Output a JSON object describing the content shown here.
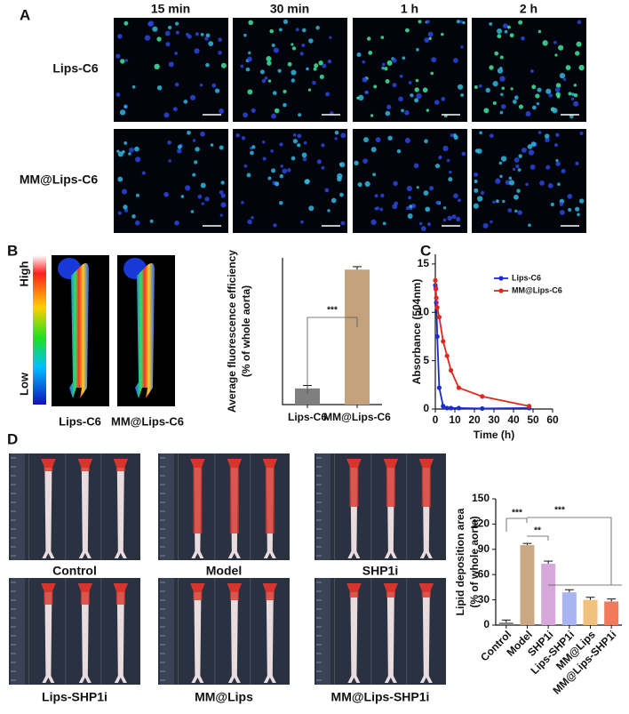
{
  "panel_labels": [
    "A",
    "B",
    "C",
    "D"
  ],
  "panel_a": {
    "columns": [
      "15 min",
      "30 min",
      "1 h",
      "2 h"
    ],
    "rows": [
      "Lips-C6",
      "MM@Lips-C6"
    ]
  },
  "panel_b_images": {
    "scale_high": "High",
    "scale_low": "Low",
    "labels": [
      "Lips-C6",
      "MM@Lips-C6"
    ]
  },
  "panel_d_images": {
    "labels": [
      "Control",
      "Model",
      "SHP1i",
      "Lips-SHP1i",
      "MM@Lips",
      "MM@Lips-SHP1i"
    ]
  },
  "chart_data": [
    {
      "type": "bar",
      "y_label": [
        "Average fluorescence efficiency",
        "(% of whole aorta)"
      ],
      "categories": [
        "Lips-C6",
        "MM@Lips-C6"
      ],
      "values": [
        5.5,
        46
      ],
      "errors": [
        1,
        1
      ],
      "colors": [
        "#7f7f7f",
        "#c4a27c"
      ],
      "ylim": [
        0,
        50
      ],
      "annotations": [
        "***"
      ]
    },
    {
      "type": "line",
      "x_label": "Time (h)",
      "y_label": "Absorbance (504nm)",
      "xlim": [
        0,
        60
      ],
      "xticks": [
        0,
        10,
        20,
        30,
        40,
        50,
        60
      ],
      "ylim": [
        0,
        16
      ],
      "yticks": [
        0,
        5,
        10,
        15
      ],
      "legend": "upper right",
      "series": [
        {
          "name": "Lips-C6",
          "color": "#1a2bd6",
          "x": [
            0,
            0.25,
            0.5,
            1,
            2,
            4,
            6,
            8,
            12,
            24,
            48
          ],
          "values": [
            12.8,
            12.5,
            11,
            7.5,
            2.2,
            0.3,
            0.1,
            0.1,
            0.1,
            0.05,
            0.1
          ]
        },
        {
          "name": "MM@Lips-C6",
          "color": "#e0281e",
          "x": [
            0,
            0.25,
            0.5,
            1,
            2,
            4,
            6,
            8,
            12,
            24,
            48
          ],
          "values": [
            13.3,
            12.4,
            11.5,
            10.5,
            9.5,
            7,
            5.5,
            4,
            2.2,
            1.3,
            0.3
          ]
        }
      ]
    },
    {
      "type": "bar",
      "y_label": [
        "Lipid deposition area",
        "(% of whole aorta)"
      ],
      "categories": [
        "Control",
        "Model",
        "SHP1i",
        "Lips-SHP1i",
        "MM@Lips",
        "MM@Lips-SHP1i"
      ],
      "values": [
        3,
        95,
        73,
        39,
        30,
        28
      ],
      "errors": [
        3,
        2,
        3,
        3,
        3,
        3
      ],
      "colors": [
        "#808080",
        "#c9a882",
        "#d8a8dc",
        "#a9b4f2",
        "#f2c27c",
        "#f07a5c"
      ],
      "ylim": [
        0,
        150
      ],
      "yticks": [
        0,
        30,
        60,
        90,
        120,
        150
      ],
      "annotations": [
        "***",
        "**",
        "***"
      ]
    }
  ]
}
